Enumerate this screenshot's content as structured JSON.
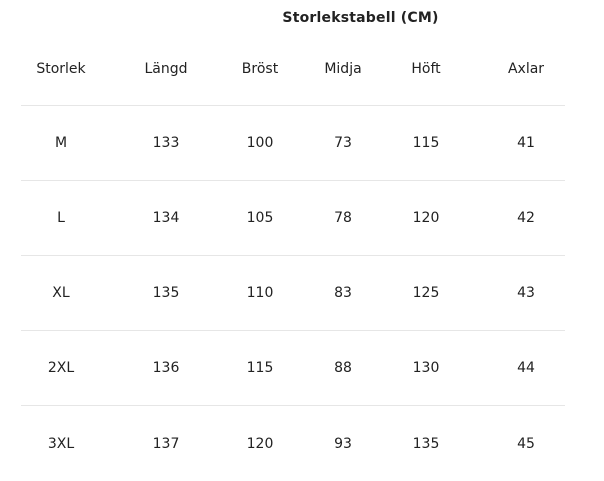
{
  "title": "Storlekstabell (CM)",
  "table": {
    "headers": [
      "Storlek",
      "Längd",
      "Bröst",
      "Midja",
      "Höft",
      "Axlar"
    ],
    "rows": [
      [
        "M",
        "133",
        "100",
        "73",
        "115",
        "41"
      ],
      [
        "L",
        "134",
        "105",
        "78",
        "120",
        "42"
      ],
      [
        "XL",
        "135",
        "110",
        "83",
        "125",
        "43"
      ],
      [
        "2XL",
        "136",
        "115",
        "88",
        "130",
        "44"
      ],
      [
        "3XL",
        "137",
        "120",
        "93",
        "135",
        "45"
      ]
    ]
  }
}
